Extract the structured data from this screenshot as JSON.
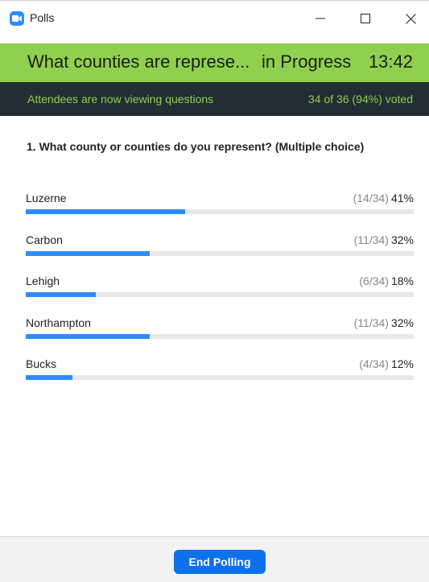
{
  "window": {
    "title": "Polls",
    "icon": "zoom-camera-icon",
    "accent_color": "#2D8CFF"
  },
  "poll": {
    "title": "What counties are represe...",
    "status": "in Progress",
    "timer": "13:42",
    "attendee_message": "Attendees are now viewing questions",
    "vote_summary": "34 of 36 (94%) voted",
    "header_color": "#8FD14F",
    "subheader_color": "#232d33"
  },
  "question": {
    "text": "1. What county or counties do you represent? (Multiple choice)",
    "answers": [
      {
        "label": "Luzerne",
        "fraction": "(14/34)",
        "percent": "41%",
        "value": 41
      },
      {
        "label": "Carbon",
        "fraction": "(11/34)",
        "percent": "32%",
        "value": 32
      },
      {
        "label": "Lehigh",
        "fraction": "(6/34)",
        "percent": "18%",
        "value": 18
      },
      {
        "label": "Northampton",
        "fraction": "(11/34)",
        "percent": "32%",
        "value": 32
      },
      {
        "label": "Bucks",
        "fraction": "(4/34)",
        "percent": "12%",
        "value": 12
      }
    ]
  },
  "footer": {
    "end_button_label": "End Polling"
  }
}
